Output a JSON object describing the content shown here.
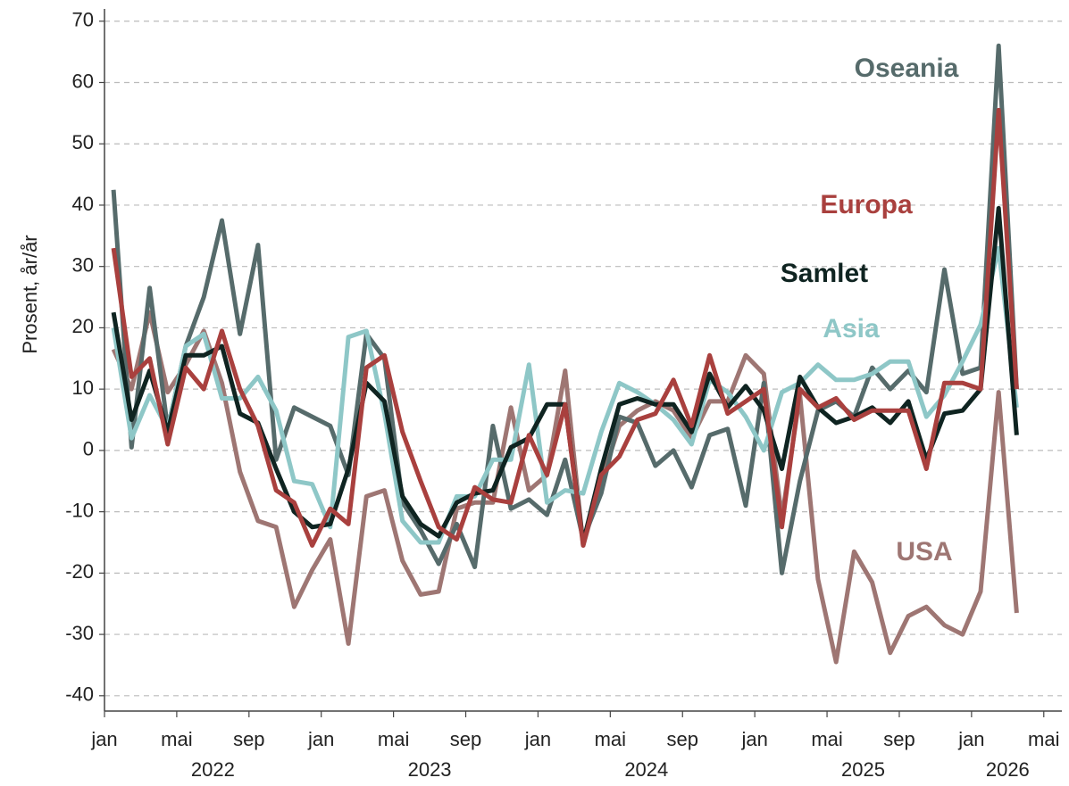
{
  "chart_data": {
    "type": "line",
    "ylabel": "Prosent, år/år",
    "x": [
      "2022-01",
      "2022-02",
      "2022-03",
      "2022-04",
      "2022-05",
      "2022-06",
      "2022-07",
      "2022-08",
      "2022-09",
      "2022-10",
      "2022-11",
      "2022-12",
      "2023-01",
      "2023-02",
      "2023-03",
      "2023-04",
      "2023-05",
      "2023-06",
      "2023-07",
      "2023-08",
      "2023-09",
      "2023-10",
      "2023-11",
      "2023-12",
      "2024-01",
      "2024-02",
      "2024-03",
      "2024-04",
      "2024-05",
      "2024-06",
      "2024-07",
      "2024-08",
      "2024-09",
      "2024-10",
      "2024-11",
      "2024-12",
      "2025-01",
      "2025-02",
      "2025-03",
      "2025-04",
      "2025-05",
      "2025-06",
      "2025-07",
      "2025-08",
      "2025-09",
      "2025-10",
      "2025-11",
      "2025-12",
      "2026-01",
      "2026-02",
      "2026-03"
    ],
    "xlim": [
      "2022-01",
      "2026-06"
    ],
    "xticks": [
      {
        "value": "2022-01",
        "label": "jan"
      },
      {
        "value": "2022-05",
        "label": "mai"
      },
      {
        "value": "2022-09",
        "label": "sep"
      },
      {
        "value": "2023-01",
        "label": "jan"
      },
      {
        "value": "2023-05",
        "label": "mai"
      },
      {
        "value": "2023-09",
        "label": "sep"
      },
      {
        "value": "2024-01",
        "label": "jan"
      },
      {
        "value": "2024-05",
        "label": "mai"
      },
      {
        "value": "2024-09",
        "label": "sep"
      },
      {
        "value": "2025-01",
        "label": "jan"
      },
      {
        "value": "2025-05",
        "label": "mai"
      },
      {
        "value": "2025-09",
        "label": "sep"
      },
      {
        "value": "2026-01",
        "label": "jan"
      },
      {
        "value": "2026-05",
        "label": "mai"
      }
    ],
    "year_labels": [
      {
        "value": "2022-07",
        "label": "2022"
      },
      {
        "value": "2023-07",
        "label": "2023"
      },
      {
        "value": "2024-07",
        "label": "2024"
      },
      {
        "value": "2025-07",
        "label": "2025"
      },
      {
        "value": "2026-03",
        "label": "2026"
      }
    ],
    "ylim": [
      -42.5,
      72
    ],
    "yticks": [
      -40,
      -30,
      -20,
      -10,
      0,
      10,
      20,
      30,
      40,
      50,
      60,
      70
    ],
    "grid": true,
    "series": [
      {
        "name": "USA",
        "color": "#9e7673",
        "values": [
          16.5,
          10,
          22.5,
          9.5,
          14,
          19.5,
          11,
          -3.5,
          -11.5,
          -12.5,
          -25.5,
          -19.5,
          -14.5,
          -31.5,
          -7.5,
          -6.5,
          -18,
          -23.5,
          -23,
          -9.5,
          -8.5,
          -8.5,
          7,
          -6.5,
          -4,
          13,
          -15.5,
          -5,
          4,
          6.5,
          8,
          6.5,
          2,
          8,
          8,
          15.5,
          12.5,
          -11,
          9,
          -21,
          -34.5,
          -16.5,
          -21.5,
          -33,
          -27,
          -25.5,
          -28.5,
          -30,
          -23,
          9.5,
          -26.5
        ]
      },
      {
        "name": "Oseania",
        "color": "#566b6b",
        "values": [
          42.5,
          0.5,
          26.5,
          3.5,
          17,
          25,
          37.5,
          19,
          33.5,
          -1.5,
          7,
          5.5,
          4,
          -4,
          19,
          15,
          -8.5,
          -13,
          -18.5,
          -12,
          -19,
          4,
          -9.5,
          -8,
          -10.5,
          -1.5,
          -14.5,
          -7,
          5.5,
          4.5,
          -2.5,
          0,
          -6,
          2.5,
          3.5,
          -9,
          11,
          -20,
          -5,
          6.5,
          8,
          5.5,
          13.5,
          10,
          13,
          9.5,
          29.5,
          12.5,
          13.5,
          66,
          10
        ]
      },
      {
        "name": "Asia",
        "color": "#8ec7c7",
        "values": [
          20,
          2,
          9,
          3.5,
          17,
          19,
          8.5,
          8.5,
          12,
          6.5,
          -5,
          -5.5,
          -12.5,
          18.5,
          19.5,
          6,
          -11.5,
          -15,
          -15,
          -7.5,
          -7.5,
          -1.5,
          -1.5,
          14,
          -8.5,
          -6.5,
          -7,
          3,
          11,
          9.5,
          7.5,
          5,
          1,
          11.5,
          9.5,
          5.5,
          0,
          9.5,
          11,
          14,
          11.5,
          11.5,
          12.5,
          14.5,
          14.5,
          5.5,
          9,
          14.5,
          20.5,
          33,
          7
        ]
      },
      {
        "name": "Samlet",
        "color": "#0f2421",
        "values": [
          22.5,
          5,
          13,
          3,
          15.5,
          15.5,
          17,
          6,
          4.5,
          -3,
          -10,
          -12.5,
          -12,
          -3,
          11,
          8,
          -7.5,
          -12,
          -14,
          -8.5,
          -7,
          -6.5,
          0.5,
          2,
          7.5,
          7.5,
          -15,
          -3,
          7.5,
          8.5,
          7.5,
          7.5,
          3,
          12.5,
          7,
          10.5,
          6.5,
          -3,
          12,
          7,
          4.5,
          5.5,
          7,
          4.5,
          8,
          -1.5,
          6,
          6.5,
          10,
          39.5,
          2.5
        ]
      },
      {
        "name": "Europa",
        "color": "#a9403e",
        "values": [
          33,
          12,
          15,
          1,
          13.5,
          10,
          19.5,
          10,
          4,
          -6.5,
          -8.5,
          -15.5,
          -9.5,
          -12,
          13.5,
          15.5,
          3,
          -5,
          -12.5,
          -14.5,
          -6,
          -8,
          -8.5,
          2.5,
          -4,
          7.5,
          -15.5,
          -4,
          -1,
          5,
          6,
          11.5,
          4,
          15.5,
          6,
          8,
          10,
          -12.5,
          10,
          7,
          8.5,
          5,
          6.5,
          6.5,
          6.5,
          -3,
          11,
          11,
          10,
          55.5,
          10
        ]
      }
    ]
  }
}
